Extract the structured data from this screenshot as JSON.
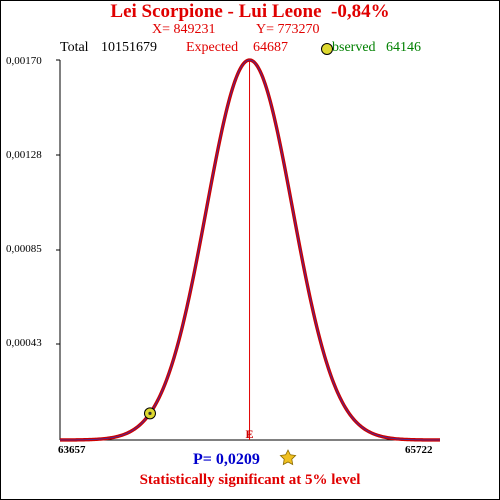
{
  "header": {
    "title": "Lei Scorpione - Lui Leone  -0,84%",
    "x_text": "X= 849231",
    "y_text": "Y= 773270",
    "total_label": "Total",
    "total_value": "10151679",
    "expected_label": "Expected",
    "expected_value": "64687",
    "observed_label": "bserved",
    "observed_value": "64146"
  },
  "footer": {
    "p_value": "P= 0,0209",
    "significance": "Statistically significant at 5% level"
  },
  "colors": {
    "curve": "#cc0000",
    "curve_inner": "#4a2a9a",
    "expected_line": "#e00000",
    "observed_marker": "#ddd830",
    "star": "#f0c020"
  },
  "icons": {
    "observed_marker": "yellow-circle-icon",
    "significance": "star-icon"
  },
  "chart_data": {
    "type": "line",
    "title": "Lei Scorpione - Lui Leone  -0,84%",
    "xlim": [
      63657,
      65722
    ],
    "ylim": [
      0,
      0.0017
    ],
    "x_tick_labels": [
      "63657",
      "65722"
    ],
    "y_tick_labels": [
      "0,00043",
      "0,00085",
      "0,00128",
      "0,00170"
    ],
    "y_ticks": [
      0.00043,
      0.00085,
      0.00128,
      0.0017
    ],
    "series": [
      {
        "distribution": "normal",
        "mean": 64687,
        "peak_density": 0.0017
      }
    ],
    "expected": {
      "x": 64687,
      "label": "E"
    },
    "observed": {
      "x": 64146
    },
    "grid": false
  }
}
